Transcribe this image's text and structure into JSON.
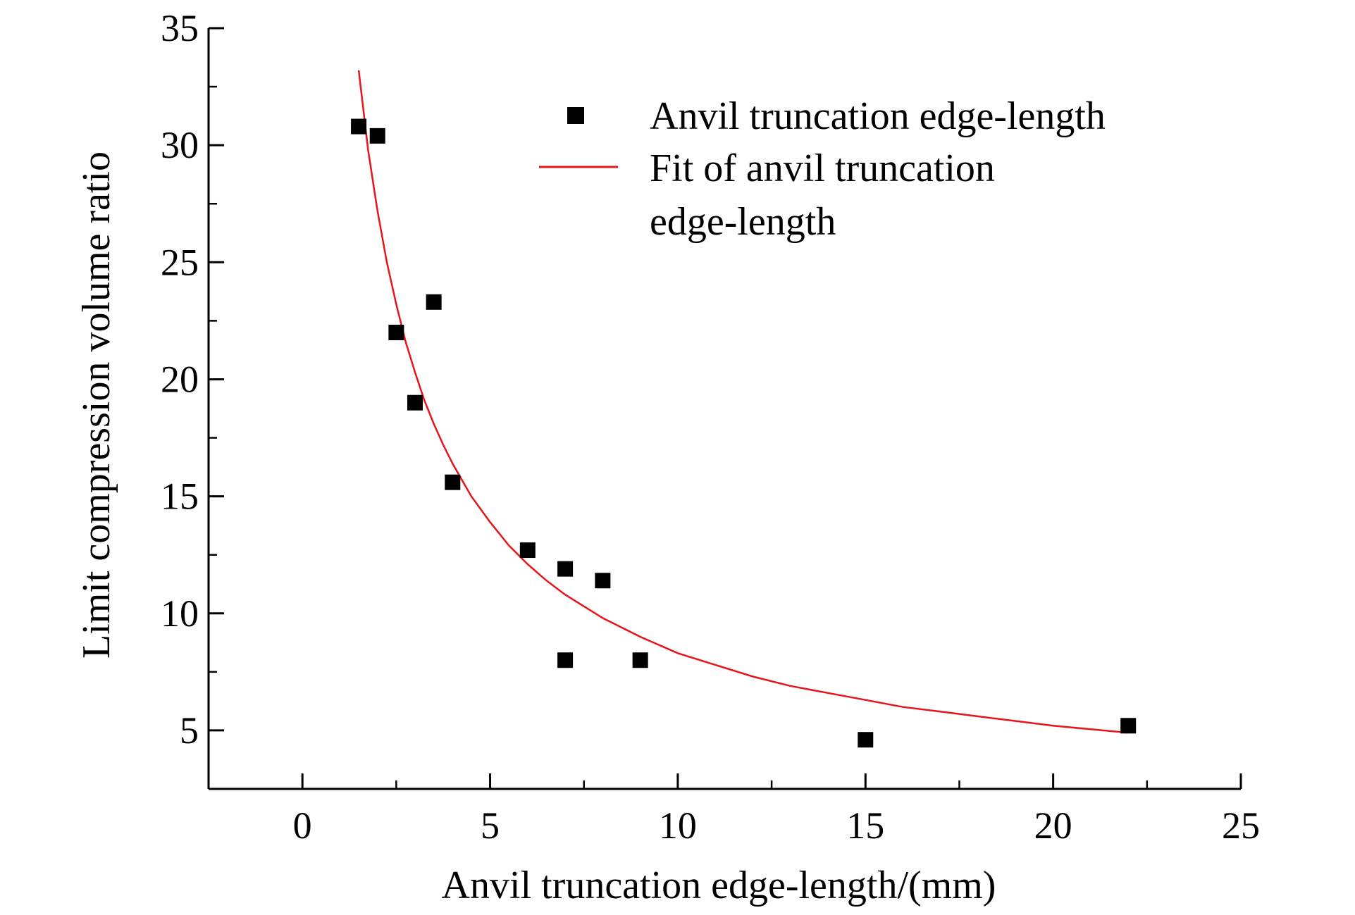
{
  "chart_data": {
    "type": "scatter",
    "xlabel": "Anvil truncation edge-length/(mm)",
    "ylabel": "Limit compression volume ratio",
    "xlim": [
      -2.5,
      25
    ],
    "ylim": [
      2.5,
      35
    ],
    "xticks": [
      0,
      5,
      10,
      15,
      20,
      25
    ],
    "xtick_labels": [
      "0",
      "5",
      "10",
      "15",
      "20",
      "25"
    ],
    "yticks": [
      5,
      10,
      15,
      20,
      25,
      30,
      35
    ],
    "ytick_labels": [
      "5",
      "10",
      "15",
      "20",
      "25",
      "30",
      "35"
    ],
    "grid": false,
    "legend_position": "top-right",
    "series": [
      {
        "name": "Anvil truncation edge-length",
        "kind": "scatter",
        "marker": "square",
        "color": "#000000",
        "x": [
          1.5,
          2.0,
          2.5,
          3.0,
          3.5,
          4.0,
          6.0,
          7.0,
          7.0,
          8.0,
          9.0,
          15.0,
          22.0
        ],
        "y": [
          30.8,
          30.4,
          22.0,
          19.0,
          23.3,
          15.6,
          12.7,
          11.9,
          8.0,
          11.4,
          8.0,
          4.6,
          5.2
        ]
      },
      {
        "name_lines": [
          "Fit of anvil truncation",
          "edge-length"
        ],
        "kind": "line",
        "color": "#e8141b",
        "x": [
          1.5,
          1.75,
          2.0,
          2.25,
          2.5,
          2.75,
          3.0,
          3.25,
          3.5,
          3.75,
          4.0,
          4.5,
          5.0,
          5.5,
          6.0,
          6.5,
          7.0,
          7.5,
          8.0,
          9.0,
          10.0,
          11.0,
          12.0,
          13.0,
          14.0,
          15.0,
          16.0,
          17.0,
          18.0,
          19.0,
          20.0,
          21.0,
          22.0
        ],
        "y": [
          33.2,
          29.8,
          27.2,
          25.0,
          23.2,
          21.6,
          20.3,
          19.1,
          18.1,
          17.2,
          16.4,
          15.0,
          13.9,
          12.9,
          12.1,
          11.4,
          10.8,
          10.3,
          9.8,
          9.0,
          8.3,
          7.8,
          7.3,
          6.9,
          6.6,
          6.3,
          6.0,
          5.8,
          5.6,
          5.4,
          5.2,
          5.05,
          4.9
        ]
      }
    ]
  }
}
